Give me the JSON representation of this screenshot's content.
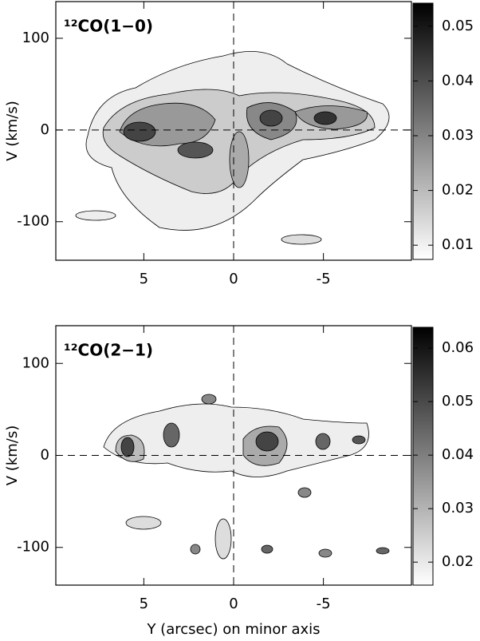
{
  "chart_data": [
    {
      "type": "heatmap",
      "title": "¹²CO(1−0)",
      "y_label": "V (km/s)",
      "xlim": [
        9.9,
        -9.9
      ],
      "xticks": [
        5,
        0,
        -5
      ],
      "ylim": [
        -142,
        140
      ],
      "yticks": [
        -100,
        0,
        100
      ],
      "colorbar_lim": [
        0.0074,
        0.0542
      ],
      "colorbar_ticks": [
        0.01,
        0.02,
        0.03,
        0.04,
        0.05
      ]
    },
    {
      "type": "heatmap",
      "title": "¹²CO(2−1)",
      "y_label": "V (km/s)",
      "x_label": "Y (arcsec) on minor axis",
      "xlim": [
        9.9,
        -9.9
      ],
      "xticks": [
        5,
        0,
        -5
      ],
      "ylim": [
        -141,
        141
      ],
      "yticks": [
        -100,
        0,
        100
      ],
      "colorbar_lim": [
        0.0157,
        0.0639
      ],
      "colorbar_ticks": [
        0.02,
        0.03,
        0.04,
        0.05,
        0.06
      ]
    }
  ]
}
